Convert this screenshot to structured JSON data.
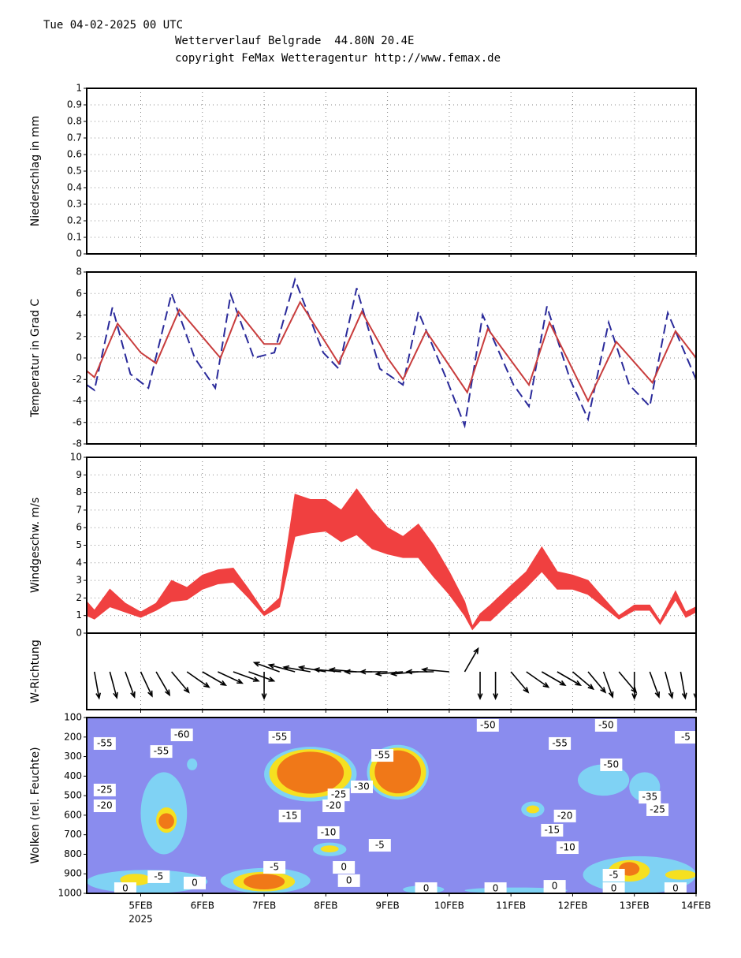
{
  "header": {
    "date": "Tue 04-02-2025 00 UTC",
    "location": "Wetterverlauf Belgrade  44.80N 20.4E",
    "copyright": "copyright FeMax Wetteragentur http://www.femax.de"
  },
  "chart_data": [
    {
      "type": "bar",
      "ylabel": "Niederschlag in mm",
      "color": "#3040c0",
      "grid": true,
      "xlim": [
        3,
        240
      ],
      "ylim": [
        0,
        1
      ],
      "yticks": [
        0,
        0.1,
        0.2,
        0.3,
        0.4,
        0.5,
        0.6,
        0.7,
        0.8,
        0.9,
        1
      ],
      "x": [
        24,
        48,
        72,
        96,
        120,
        144,
        168,
        192,
        216,
        240
      ],
      "values": [
        0,
        0,
        0,
        0,
        0,
        0,
        0,
        0,
        0,
        0
      ]
    },
    {
      "type": "line",
      "ylabel": "Temperatur in Grad C",
      "grid": true,
      "xlim": [
        3,
        240
      ],
      "ylim": [
        -8,
        8
      ],
      "yticks": [
        -8,
        -6,
        -4,
        -2,
        0,
        2,
        4,
        6,
        8
      ],
      "series": [
        {
          "color": "#2a2a9a",
          "dashed": true,
          "x": [
            3,
            6,
            13,
            20,
            27,
            36,
            45,
            53,
            59,
            68,
            76,
            84,
            95,
            101,
            108,
            117,
            126,
            132,
            143,
            150,
            157,
            169,
            175,
            182,
            191,
            198,
            206,
            214,
            222,
            229,
            240
          ],
          "values": [
            -2.5,
            -3,
            4.7,
            -1.5,
            -2.8,
            6,
            0,
            -2.8,
            5.9,
            0,
            0.5,
            7.3,
            0.5,
            -1,
            6.5,
            -1,
            -2.5,
            4.3,
            -2,
            -6.3,
            4,
            -2.5,
            -4.5,
            4.8,
            -2,
            -5.7,
            3.3,
            -2.5,
            -4.5,
            4.2,
            -2
          ]
        },
        {
          "color": "#c83c3c",
          "dashed": false,
          "x": [
            3,
            6,
            15,
            24,
            30,
            39,
            55,
            62,
            72,
            78,
            86,
            101,
            110,
            120,
            126,
            135,
            151,
            159,
            175,
            183,
            198,
            209,
            223,
            232,
            240
          ],
          "values": [
            -1.2,
            -1.8,
            3.2,
            0.5,
            -0.5,
            4.5,
            0,
            4.3,
            1.3,
            1.3,
            5.2,
            -0.5,
            4.3,
            0,
            -2,
            2.5,
            -3.2,
            2.7,
            -2.5,
            3.3,
            -4,
            1.5,
            -2.3,
            2.5,
            0
          ]
        }
      ]
    },
    {
      "type": "band",
      "ylabel": "Windgeschw. m/s",
      "color": "#f04040",
      "grid": true,
      "xlim": [
        3,
        240
      ],
      "ylim": [
        0,
        10
      ],
      "yticks": [
        0,
        1,
        2,
        3,
        4,
        5,
        6,
        7,
        8,
        9,
        10
      ],
      "x": [
        3,
        6,
        12,
        18,
        24,
        30,
        36,
        42,
        48,
        54,
        60,
        66,
        72,
        78,
        84,
        90,
        96,
        102,
        108,
        114,
        120,
        126,
        132,
        138,
        144,
        150,
        153,
        156,
        160,
        168,
        174,
        180,
        186,
        192,
        198,
        204,
        210,
        216,
        222,
        226,
        232,
        236,
        240
      ],
      "low": [
        1.0,
        0.8,
        1.5,
        1.2,
        0.9,
        1.3,
        1.8,
        1.9,
        2.5,
        2.8,
        2.9,
        2.0,
        1.0,
        1.5,
        5.5,
        5.7,
        5.8,
        5.2,
        5.6,
        4.8,
        4.5,
        4.3,
        4.3,
        3.2,
        2.2,
        1.0,
        0.2,
        0.7,
        0.7,
        1.8,
        2.6,
        3.5,
        2.5,
        2.5,
        2.2,
        1.5,
        0.8,
        1.3,
        1.3,
        0.5,
        1.9,
        0.9,
        1.2
      ],
      "high": [
        1.8,
        1.3,
        2.5,
        1.7,
        1.2,
        1.7,
        3.0,
        2.6,
        3.3,
        3.6,
        3.7,
        2.5,
        1.2,
        2.0,
        7.9,
        7.6,
        7.6,
        7.0,
        8.2,
        7.0,
        6.0,
        5.5,
        6.2,
        5.0,
        3.5,
        1.8,
        0.4,
        1.1,
        1.6,
        2.7,
        3.5,
        4.9,
        3.5,
        3.3,
        3.0,
        2.0,
        1.0,
        1.6,
        1.6,
        0.7,
        2.4,
        1.2,
        1.5
      ]
    },
    {
      "type": "vector",
      "ylabel": "W-Richtung",
      "color": "#000000",
      "grid": true,
      "xlim": [
        3,
        240
      ],
      "x": [
        6,
        12,
        18,
        24,
        30,
        36,
        42,
        48,
        54,
        60,
        66,
        72,
        78,
        84,
        90,
        96,
        102,
        108,
        114,
        120,
        126,
        132,
        138,
        144,
        150,
        156,
        162,
        168,
        174,
        180,
        186,
        192,
        198,
        204,
        210,
        216,
        222,
        228,
        234,
        240
      ],
      "values": [
        350,
        345,
        340,
        335,
        330,
        320,
        305,
        300,
        295,
        290,
        290,
        0,
        110,
        105,
        100,
        100,
        95,
        95,
        90,
        90,
        85,
        85,
        90,
        95,
        210,
        0,
        0,
        320,
        305,
        300,
        300,
        310,
        320,
        340,
        320,
        0,
        340,
        345,
        350,
        0
      ]
    },
    {
      "type": "contour",
      "ylabel": "Wolken (rel. Feuchte)",
      "background": "#8a8cee",
      "grid": false,
      "xlim": [
        3,
        240
      ],
      "ylim": [
        1000,
        100
      ],
      "yticks": [
        100,
        200,
        300,
        400,
        500,
        600,
        700,
        800,
        900,
        1000
      ],
      "xticks": [
        {
          "value": 24,
          "label": "5FEB"
        },
        {
          "value": 48,
          "label": "6FEB"
        },
        {
          "value": 72,
          "label": "7FEB"
        },
        {
          "value": 96,
          "label": "8FEB"
        },
        {
          "value": 120,
          "label": "9FEB"
        },
        {
          "value": 144,
          "label": "10FEB"
        },
        {
          "value": 168,
          "label": "11FEB"
        },
        {
          "value": 192,
          "label": "12FEB"
        },
        {
          "value": 216,
          "label": "13FEB"
        },
        {
          "value": 240,
          "label": "14FEB"
        }
      ],
      "xsublabel": "2025",
      "clouds": [
        {
          "x": [
            72,
            108
          ],
          "p": [
            250,
            530
          ],
          "color": "#7fd2f4"
        },
        {
          "x": [
            74,
            106
          ],
          "p": [
            262,
            510
          ],
          "color": "#f6e020"
        },
        {
          "x": [
            77,
            103
          ],
          "p": [
            275,
            490
          ],
          "color": "#f07818"
        },
        {
          "x": [
            112,
            136
          ],
          "p": [
            240,
            520
          ],
          "color": "#7fd2f4"
        },
        {
          "x": [
            113,
            135
          ],
          "p": [
            255,
            505
          ],
          "color": "#f6e020"
        },
        {
          "x": [
            115,
            133
          ],
          "p": [
            268,
            488
          ],
          "color": "#f07818"
        },
        {
          "x": [
            24,
            42
          ],
          "p": [
            380,
            800
          ],
          "color": "#7fd2f4"
        },
        {
          "x": [
            30,
            38
          ],
          "p": [
            560,
            690
          ],
          "color": "#f6e020"
        },
        {
          "x": [
            31,
            37
          ],
          "p": [
            590,
            670
          ],
          "color": "#f07818"
        },
        {
          "x": [
            42,
            46
          ],
          "p": [
            310,
            370
          ],
          "color": "#7fd2f4"
        },
        {
          "x": [
            3,
            50
          ],
          "p": [
            880,
            1000
          ],
          "color": "#7fd2f4"
        },
        {
          "x": [
            16,
            28
          ],
          "p": [
            900,
            960
          ],
          "color": "#f6e020"
        },
        {
          "x": [
            55,
            90
          ],
          "p": [
            870,
            1000
          ],
          "color": "#7fd2f4"
        },
        {
          "x": [
            60,
            84
          ],
          "p": [
            890,
            990
          ],
          "color": "#f6e020"
        },
        {
          "x": [
            64,
            80
          ],
          "p": [
            900,
            980
          ],
          "color": "#f07818"
        },
        {
          "x": [
            91,
            104
          ],
          "p": [
            740,
            810
          ],
          "color": "#7fd2f4"
        },
        {
          "x": [
            94,
            101
          ],
          "p": [
            755,
            790
          ],
          "color": "#f6e020"
        },
        {
          "x": [
            194,
            214
          ],
          "p": [
            340,
            500
          ],
          "color": "#7fd2f4"
        },
        {
          "x": [
            214,
            226
          ],
          "p": [
            380,
            530
          ],
          "color": "#7fd2f4"
        },
        {
          "x": [
            172,
            181
          ],
          "p": [
            530,
            610
          ],
          "color": "#7fd2f4"
        },
        {
          "x": [
            174,
            179
          ],
          "p": [
            550,
            590
          ],
          "color": "#f6e020"
        },
        {
          "x": [
            196,
            240
          ],
          "p": [
            810,
            1000
          ],
          "color": "#7fd2f4"
        },
        {
          "x": [
            206,
            222
          ],
          "p": [
            830,
            940
          ],
          "color": "#f6e020"
        },
        {
          "x": [
            210,
            218
          ],
          "p": [
            840,
            910
          ],
          "color": "#f07818"
        },
        {
          "x": [
            228,
            240
          ],
          "p": [
            880,
            930
          ],
          "color": "#f6e020"
        },
        {
          "x": [
            126,
            142
          ],
          "p": [
            960,
            1000
          ],
          "color": "#7fd2f4"
        },
        {
          "x": [
            150,
            190
          ],
          "p": [
            970,
            1000
          ],
          "color": "#7fd2f4"
        }
      ],
      "isotherms": [
        {
          "value": -55,
          "x": 10,
          "p": 233
        },
        {
          "value": -60,
          "x": 40,
          "p": 189
        },
        {
          "value": -55,
          "x": 32,
          "p": 274
        },
        {
          "value": -55,
          "x": 78,
          "p": 201
        },
        {
          "value": -55,
          "x": 118,
          "p": 294
        },
        {
          "value": -50,
          "x": 159,
          "p": 140
        },
        {
          "value": -55,
          "x": 187,
          "p": 233
        },
        {
          "value": -50,
          "x": 205,
          "p": 140
        },
        {
          "value": -5,
          "x": 236,
          "p": 201
        },
        {
          "value": -50,
          "x": 207,
          "p": 342
        },
        {
          "value": -30,
          "x": 110,
          "p": 455
        },
        {
          "value": -25,
          "x": 101,
          "p": 496
        },
        {
          "value": -20,
          "x": 99,
          "p": 552
        },
        {
          "value": -20,
          "x": 10,
          "p": 552
        },
        {
          "value": -25,
          "x": 10,
          "p": 471
        },
        {
          "value": -15,
          "x": 82,
          "p": 604
        },
        {
          "value": -10,
          "x": 97,
          "p": 689
        },
        {
          "value": -5,
          "x": 117,
          "p": 754
        },
        {
          "value": -5,
          "x": 76,
          "p": 867
        },
        {
          "value": 0,
          "x": 103,
          "p": 867
        },
        {
          "value": 0,
          "x": 105,
          "p": 935
        },
        {
          "value": -5,
          "x": 31,
          "p": 915
        },
        {
          "value": 0,
          "x": 45,
          "p": 947
        },
        {
          "value": 0,
          "x": 18,
          "p": 976
        },
        {
          "value": 0,
          "x": 135,
          "p": 976
        },
        {
          "value": 0,
          "x": 162,
          "p": 976
        },
        {
          "value": 0,
          "x": 185,
          "p": 964
        },
        {
          "value": -20,
          "x": 189,
          "p": 604
        },
        {
          "value": -15,
          "x": 184,
          "p": 677
        },
        {
          "value": -10,
          "x": 190,
          "p": 766
        },
        {
          "value": -5,
          "x": 208,
          "p": 907
        },
        {
          "value": 0,
          "x": 208,
          "p": 976
        },
        {
          "value": 0,
          "x": 232,
          "p": 976
        },
        {
          "value": -25,
          "x": 225,
          "p": 572
        },
        {
          "value": -35,
          "x": 222,
          "p": 508
        }
      ]
    }
  ]
}
